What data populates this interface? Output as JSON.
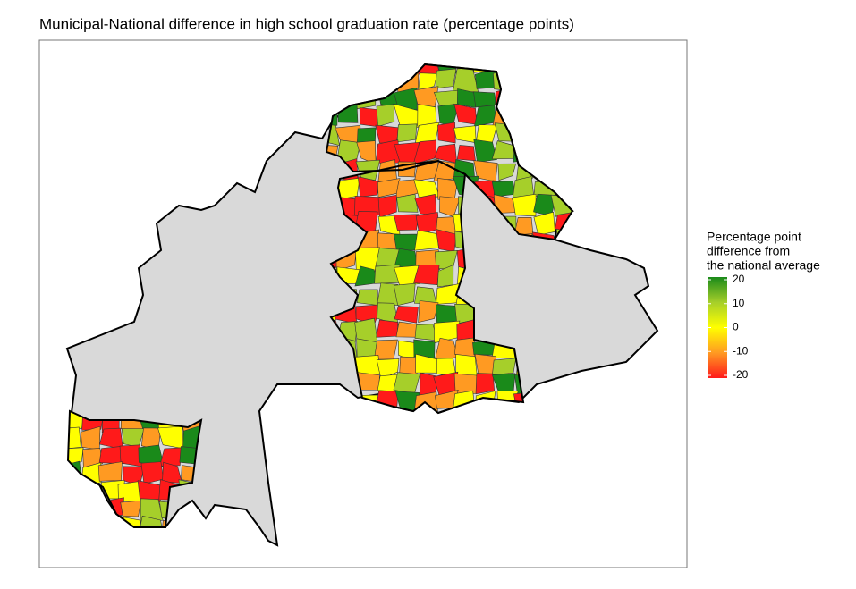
{
  "title": "Municipal-National difference in high school graduation rate (percentage points)",
  "legend": {
    "title_lines": [
      "Percentage point",
      "difference from",
      "the national average"
    ],
    "ticks": [
      20,
      10,
      0,
      -10,
      -20
    ],
    "colors": [
      "#1a8a1a",
      "#a6cf2a",
      "#ffff00",
      "#ff9a22",
      "#ff1a1a"
    ]
  }
}
